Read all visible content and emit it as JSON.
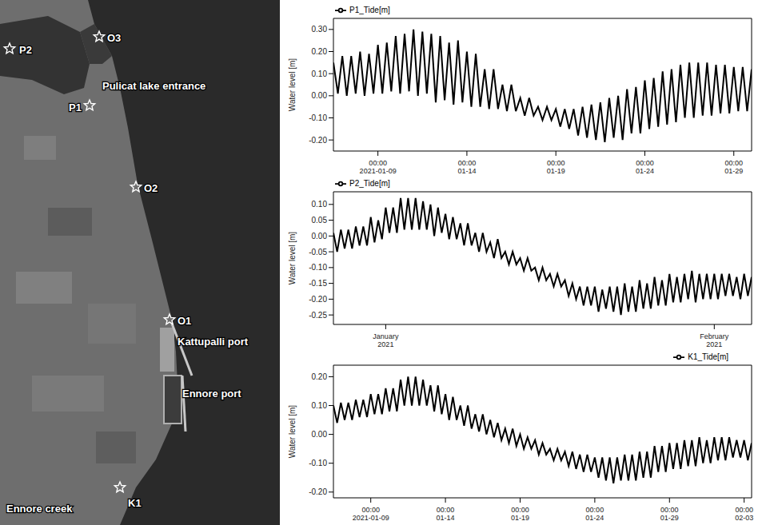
{
  "map": {
    "labels": [
      "P2",
      "O3",
      "Pulicat lake entrance",
      "P1",
      "O2",
      "O1",
      "Kattupalli port",
      "Ennore port",
      "Ennore creek",
      "K1"
    ]
  },
  "chart_data": [
    {
      "type": "line",
      "y_label": "Water level [m]",
      "legend": "top left",
      "grid": false,
      "x": [
        "2021-01-06 12:00",
        "2021-01-06 18:00",
        "2021-01-07 00:00",
        "2021-01-07 06:00",
        "2021-01-07 12:00",
        "2021-01-07 18:00",
        "2021-01-08 00:00",
        "2021-01-08 06:00",
        "2021-01-08 12:00",
        "2021-01-08 18:00",
        "2021-01-09 00:00",
        "2021-01-09 06:00",
        "2021-01-09 12:00",
        "2021-01-09 18:00",
        "2021-01-10 00:00",
        "2021-01-10 06:00",
        "2021-01-10 12:00",
        "2021-01-10 18:00",
        "2021-01-11 00:00",
        "2021-01-11 06:00",
        "2021-01-11 12:00",
        "2021-01-11 18:00",
        "2021-01-12 00:00",
        "2021-01-12 06:00",
        "2021-01-12 12:00",
        "2021-01-12 18:00",
        "2021-01-13 00:00",
        "2021-01-13 06:00",
        "2021-01-13 12:00",
        "2021-01-13 18:00",
        "2021-01-14 00:00",
        "2021-01-14 06:00",
        "2021-01-14 12:00",
        "2021-01-14 18:00",
        "2021-01-15 00:00",
        "2021-01-15 06:00",
        "2021-01-15 12:00",
        "2021-01-15 18:00",
        "2021-01-16 00:00",
        "2021-01-16 06:00",
        "2021-01-16 12:00",
        "2021-01-16 18:00",
        "2021-01-17 00:00",
        "2021-01-17 06:00",
        "2021-01-17 12:00",
        "2021-01-17 18:00",
        "2021-01-18 00:00",
        "2021-01-18 06:00",
        "2021-01-18 12:00",
        "2021-01-18 18:00",
        "2021-01-19 00:00",
        "2021-01-19 06:00",
        "2021-01-19 12:00",
        "2021-01-19 18:00",
        "2021-01-20 00:00",
        "2021-01-20 06:00",
        "2021-01-20 12:00",
        "2021-01-20 18:00",
        "2021-01-21 00:00",
        "2021-01-21 06:00",
        "2021-01-21 12:00",
        "2021-01-21 18:00",
        "2021-01-22 00:00",
        "2021-01-22 06:00",
        "2021-01-22 12:00",
        "2021-01-22 18:00",
        "2021-01-23 00:00",
        "2021-01-23 06:00",
        "2021-01-23 12:00",
        "2021-01-23 18:00",
        "2021-01-24 00:00",
        "2021-01-24 06:00",
        "2021-01-24 12:00",
        "2021-01-24 18:00",
        "2021-01-25 00:00",
        "2021-01-25 06:00",
        "2021-01-25 12:00",
        "2021-01-25 18:00",
        "2021-01-26 00:00",
        "2021-01-26 06:00",
        "2021-01-26 12:00",
        "2021-01-26 18:00",
        "2021-01-27 00:00",
        "2021-01-27 06:00",
        "2021-01-27 12:00",
        "2021-01-27 18:00",
        "2021-01-28 00:00",
        "2021-01-28 06:00",
        "2021-01-28 12:00",
        "2021-01-28 18:00",
        "2021-01-29 00:00",
        "2021-01-29 06:00",
        "2021-01-29 12:00",
        "2021-01-29 18:00",
        "2021-01-30 00:00"
      ],
      "series": [
        {
          "name": "P1_Tide[m]",
          "color": "#000000",
          "values": [
            0.15,
            0.01,
            0.18,
            0.0,
            0.18,
            0.01,
            0.2,
            0.0,
            0.19,
            0.01,
            0.23,
            0.01,
            0.24,
            0.02,
            0.27,
            0.01,
            0.28,
            0.02,
            0.3,
            0.0,
            0.29,
            0.01,
            0.28,
            -0.03,
            0.27,
            -0.02,
            0.24,
            -0.04,
            0.25,
            -0.03,
            0.2,
            -0.05,
            0.19,
            -0.05,
            0.12,
            -0.06,
            0.12,
            -0.06,
            0.05,
            -0.07,
            0.05,
            -0.07,
            -0.01,
            -0.09,
            -0.01,
            -0.09,
            -0.05,
            -0.11,
            -0.05,
            -0.11,
            -0.06,
            -0.14,
            -0.06,
            -0.15,
            -0.06,
            -0.18,
            -0.05,
            -0.19,
            -0.04,
            -0.2,
            -0.03,
            -0.21,
            -0.01,
            -0.19,
            0.0,
            -0.2,
            0.03,
            -0.17,
            0.04,
            -0.17,
            0.07,
            -0.15,
            0.08,
            -0.14,
            0.11,
            -0.13,
            0.12,
            -0.12,
            0.14,
            -0.1,
            0.15,
            -0.1,
            0.15,
            -0.09,
            0.15,
            -0.09,
            0.14,
            -0.08,
            0.14,
            -0.08,
            0.13,
            -0.07,
            0.13,
            -0.07,
            0.12
          ]
        }
      ],
      "xlim": [
        "2021-01-06 12:00",
        "2021-01-30 00:00"
      ],
      "xticks": [
        {
          "value": "2021-01-09 00:00",
          "label": "00:00\n2021-01-09"
        },
        {
          "value": "2021-01-14 00:00",
          "label": "00:00\n01-14"
        },
        {
          "value": "2021-01-19 00:00",
          "label": "00:00\n01-19"
        },
        {
          "value": "2021-01-24 00:00",
          "label": "00:00\n01-24"
        },
        {
          "value": "2021-01-29 00:00",
          "label": "00:00\n01-29"
        }
      ],
      "ylim": [
        -0.25,
        0.35
      ],
      "yticks": [
        {
          "value": -0.2,
          "label": "-0.20"
        },
        {
          "value": -0.1,
          "label": "-0.10"
        },
        {
          "value": 0,
          "label": "0.00"
        },
        {
          "value": 0.1,
          "label": "0.10"
        },
        {
          "value": 0.2,
          "label": "0.20"
        },
        {
          "value": 0.3,
          "label": "0.30"
        }
      ]
    },
    {
      "type": "line",
      "y_label": "Water level [m]",
      "legend": "top left",
      "grid": false,
      "x": [
        "2021-01-06 12:00",
        "2021-01-06 18:00",
        "2021-01-07 00:00",
        "2021-01-07 06:00",
        "2021-01-07 12:00",
        "2021-01-07 18:00",
        "2021-01-08 00:00",
        "2021-01-08 06:00",
        "2021-01-08 12:00",
        "2021-01-08 18:00",
        "2021-01-09 00:00",
        "2021-01-09 06:00",
        "2021-01-09 12:00",
        "2021-01-09 18:00",
        "2021-01-10 00:00",
        "2021-01-10 06:00",
        "2021-01-10 12:00",
        "2021-01-10 18:00",
        "2021-01-11 00:00",
        "2021-01-11 06:00",
        "2021-01-11 12:00",
        "2021-01-11 18:00",
        "2021-01-12 00:00",
        "2021-01-12 06:00",
        "2021-01-12 12:00",
        "2021-01-12 18:00",
        "2021-01-13 00:00",
        "2021-01-13 06:00",
        "2021-01-13 12:00",
        "2021-01-13 18:00",
        "2021-01-14 00:00",
        "2021-01-14 06:00",
        "2021-01-14 12:00",
        "2021-01-14 18:00",
        "2021-01-15 00:00",
        "2021-01-15 06:00",
        "2021-01-15 12:00",
        "2021-01-15 18:00",
        "2021-01-16 00:00",
        "2021-01-16 06:00",
        "2021-01-16 12:00",
        "2021-01-16 18:00",
        "2021-01-17 00:00",
        "2021-01-17 06:00",
        "2021-01-17 12:00",
        "2021-01-17 18:00",
        "2021-01-18 00:00",
        "2021-01-18 06:00",
        "2021-01-18 12:00",
        "2021-01-18 18:00",
        "2021-01-19 00:00",
        "2021-01-19 06:00",
        "2021-01-19 12:00",
        "2021-01-19 18:00",
        "2021-01-20 00:00",
        "2021-01-20 06:00",
        "2021-01-20 12:00",
        "2021-01-20 18:00",
        "2021-01-21 00:00",
        "2021-01-21 06:00",
        "2021-01-21 12:00",
        "2021-01-21 18:00",
        "2021-01-22 00:00",
        "2021-01-22 06:00",
        "2021-01-22 12:00",
        "2021-01-22 18:00",
        "2021-01-23 00:00",
        "2021-01-23 06:00",
        "2021-01-23 12:00",
        "2021-01-23 18:00",
        "2021-01-24 00:00",
        "2021-01-24 06:00",
        "2021-01-24 12:00",
        "2021-01-24 18:00",
        "2021-01-25 00:00",
        "2021-01-25 06:00",
        "2021-01-25 12:00",
        "2021-01-25 18:00",
        "2021-01-26 00:00",
        "2021-01-26 06:00",
        "2021-01-26 12:00",
        "2021-01-26 18:00",
        "2021-01-27 00:00",
        "2021-01-27 06:00",
        "2021-01-27 12:00",
        "2021-01-27 18:00",
        "2021-01-28 00:00",
        "2021-01-28 06:00",
        "2021-01-28 12:00",
        "2021-01-28 18:00",
        "2021-01-29 00:00",
        "2021-01-29 06:00",
        "2021-01-29 12:00",
        "2021-01-29 18:00",
        "2021-01-30 00:00",
        "2021-01-30 06:00",
        "2021-01-30 12:00",
        "2021-01-30 18:00",
        "2021-01-31 00:00",
        "2021-01-31 06:00",
        "2021-01-31 12:00",
        "2021-01-31 18:00",
        "2021-02-01 00:00",
        "2021-02-01 06:00",
        "2021-02-01 12:00",
        "2021-02-01 18:00",
        "2021-02-02 00:00",
        "2021-02-02 06:00",
        "2021-02-02 12:00",
        "2021-02-02 18:00",
        "2021-02-03 00:00",
        "2021-02-03 06:00",
        "2021-02-03 12:00"
      ],
      "series": [
        {
          "name": "P2_Tide[m]",
          "color": "#000000",
          "values": [
            0.01,
            -0.05,
            0.02,
            -0.04,
            0.02,
            -0.04,
            0.03,
            -0.03,
            0.03,
            -0.03,
            0.06,
            -0.02,
            0.05,
            -0.01,
            0.09,
            0.01,
            0.09,
            0.01,
            0.12,
            0.02,
            0.12,
            0.02,
            0.12,
            0.02,
            0.11,
            0.02,
            0.1,
            0.0,
            0.09,
            0.01,
            0.07,
            -0.01,
            0.06,
            -0.01,
            0.04,
            -0.03,
            0.04,
            -0.03,
            0.01,
            -0.05,
            0.01,
            -0.05,
            -0.02,
            -0.07,
            -0.01,
            -0.07,
            -0.05,
            -0.09,
            -0.05,
            -0.09,
            -0.07,
            -0.11,
            -0.07,
            -0.11,
            -0.1,
            -0.14,
            -0.1,
            -0.14,
            -0.12,
            -0.16,
            -0.12,
            -0.16,
            -0.14,
            -0.19,
            -0.15,
            -0.2,
            -0.16,
            -0.22,
            -0.16,
            -0.22,
            -0.16,
            -0.24,
            -0.17,
            -0.23,
            -0.16,
            -0.24,
            -0.16,
            -0.25,
            -0.15,
            -0.24,
            -0.16,
            -0.24,
            -0.14,
            -0.23,
            -0.15,
            -0.23,
            -0.13,
            -0.22,
            -0.14,
            -0.22,
            -0.12,
            -0.21,
            -0.13,
            -0.21,
            -0.12,
            -0.2,
            -0.11,
            -0.21,
            -0.12,
            -0.2,
            -0.12,
            -0.2,
            -0.12,
            -0.2,
            -0.12,
            -0.19,
            -0.12,
            -0.19,
            -0.13,
            -0.2,
            -0.12,
            -0.19,
            -0.13
          ]
        }
      ],
      "xlim": [
        "2021-01-06 12:00",
        "2021-02-03 12:00"
      ],
      "xticks": [
        {
          "value": "2021-01-10 00:00",
          "label": "January\n2021"
        },
        {
          "value": "2021-02-01 00:00",
          "label": "February\n2021"
        }
      ],
      "ylim": [
        -0.28,
        0.14
      ],
      "yticks": [
        -0.25,
        {
          "value": -0.2,
          "label": "-0.20"
        },
        -0.15,
        {
          "value": -0.1,
          "label": "-0.10"
        },
        -0.05,
        {
          "value": 0,
          "label": "0.00"
        },
        0.05,
        {
          "value": 0.1,
          "label": "0.10"
        }
      ]
    },
    {
      "type": "line",
      "y_label": "Water level [m]",
      "legend": "top right",
      "grid": false,
      "x": [
        "2021-01-06 12:00",
        "2021-01-06 18:00",
        "2021-01-07 00:00",
        "2021-01-07 06:00",
        "2021-01-07 12:00",
        "2021-01-07 18:00",
        "2021-01-08 00:00",
        "2021-01-08 06:00",
        "2021-01-08 12:00",
        "2021-01-08 18:00",
        "2021-01-09 00:00",
        "2021-01-09 06:00",
        "2021-01-09 12:00",
        "2021-01-09 18:00",
        "2021-01-10 00:00",
        "2021-01-10 06:00",
        "2021-01-10 12:00",
        "2021-01-10 18:00",
        "2021-01-11 00:00",
        "2021-01-11 06:00",
        "2021-01-11 12:00",
        "2021-01-11 18:00",
        "2021-01-12 00:00",
        "2021-01-12 06:00",
        "2021-01-12 12:00",
        "2021-01-12 18:00",
        "2021-01-13 00:00",
        "2021-01-13 06:00",
        "2021-01-13 12:00",
        "2021-01-13 18:00",
        "2021-01-14 00:00",
        "2021-01-14 06:00",
        "2021-01-14 12:00",
        "2021-01-14 18:00",
        "2021-01-15 00:00",
        "2021-01-15 06:00",
        "2021-01-15 12:00",
        "2021-01-15 18:00",
        "2021-01-16 00:00",
        "2021-01-16 06:00",
        "2021-01-16 12:00",
        "2021-01-16 18:00",
        "2021-01-17 00:00",
        "2021-01-17 06:00",
        "2021-01-17 12:00",
        "2021-01-17 18:00",
        "2021-01-18 00:00",
        "2021-01-18 06:00",
        "2021-01-18 12:00",
        "2021-01-18 18:00",
        "2021-01-19 00:00",
        "2021-01-19 06:00",
        "2021-01-19 12:00",
        "2021-01-19 18:00",
        "2021-01-20 00:00",
        "2021-01-20 06:00",
        "2021-01-20 12:00",
        "2021-01-20 18:00",
        "2021-01-21 00:00",
        "2021-01-21 06:00",
        "2021-01-21 12:00",
        "2021-01-21 18:00",
        "2021-01-22 00:00",
        "2021-01-22 06:00",
        "2021-01-22 12:00",
        "2021-01-22 18:00",
        "2021-01-23 00:00",
        "2021-01-23 06:00",
        "2021-01-23 12:00",
        "2021-01-23 18:00",
        "2021-01-24 00:00",
        "2021-01-24 06:00",
        "2021-01-24 12:00",
        "2021-01-24 18:00",
        "2021-01-25 00:00",
        "2021-01-25 06:00",
        "2021-01-25 12:00",
        "2021-01-25 18:00",
        "2021-01-26 00:00",
        "2021-01-26 06:00",
        "2021-01-26 12:00",
        "2021-01-26 18:00",
        "2021-01-27 00:00",
        "2021-01-27 06:00",
        "2021-01-27 12:00",
        "2021-01-27 18:00",
        "2021-01-28 00:00",
        "2021-01-28 06:00",
        "2021-01-28 12:00",
        "2021-01-28 18:00",
        "2021-01-29 00:00",
        "2021-01-29 06:00",
        "2021-01-29 12:00",
        "2021-01-29 18:00",
        "2021-01-30 00:00",
        "2021-01-30 06:00",
        "2021-01-30 12:00",
        "2021-01-30 18:00",
        "2021-01-31 00:00",
        "2021-01-31 06:00",
        "2021-01-31 12:00",
        "2021-01-31 18:00",
        "2021-02-01 00:00",
        "2021-02-01 06:00",
        "2021-02-01 12:00",
        "2021-02-01 18:00",
        "2021-02-02 00:00",
        "2021-02-02 06:00",
        "2021-02-02 12:00",
        "2021-02-02 18:00",
        "2021-02-03 00:00",
        "2021-02-03 06:00",
        "2021-02-03 12:00"
      ],
      "series": [
        {
          "name": "K1_Tide[m]",
          "color": "#000000",
          "values": [
            0.1,
            0.04,
            0.11,
            0.05,
            0.11,
            0.05,
            0.12,
            0.06,
            0.12,
            0.06,
            0.14,
            0.07,
            0.14,
            0.07,
            0.16,
            0.08,
            0.16,
            0.08,
            0.19,
            0.1,
            0.2,
            0.1,
            0.2,
            0.1,
            0.19,
            0.1,
            0.17,
            0.08,
            0.17,
            0.07,
            0.14,
            0.05,
            0.13,
            0.05,
            0.1,
            0.03,
            0.1,
            0.02,
            0.07,
            0.01,
            0.07,
            0.0,
            0.05,
            -0.01,
            0.04,
            -0.02,
            0.02,
            -0.03,
            0.02,
            -0.04,
            0.0,
            -0.05,
            -0.01,
            -0.05,
            -0.02,
            -0.07,
            -0.03,
            -0.07,
            -0.05,
            -0.09,
            -0.05,
            -0.09,
            -0.06,
            -0.11,
            -0.06,
            -0.12,
            -0.07,
            -0.13,
            -0.07,
            -0.13,
            -0.08,
            -0.15,
            -0.08,
            -0.16,
            -0.08,
            -0.17,
            -0.08,
            -0.16,
            -0.07,
            -0.16,
            -0.07,
            -0.16,
            -0.06,
            -0.15,
            -0.06,
            -0.15,
            -0.04,
            -0.13,
            -0.04,
            -0.13,
            -0.03,
            -0.12,
            -0.03,
            -0.12,
            -0.02,
            -0.11,
            -0.02,
            -0.11,
            -0.01,
            -0.1,
            -0.02,
            -0.1,
            -0.01,
            -0.09,
            -0.01,
            -0.09,
            -0.01,
            -0.08,
            -0.02,
            -0.08,
            -0.02,
            -0.09,
            -0.03
          ]
        }
      ],
      "xlim": [
        "2021-01-06 12:00",
        "2021-02-03 12:00"
      ],
      "xticks": [
        {
          "value": "2021-01-09 00:00",
          "label": "00:00\n2021-01-09"
        },
        {
          "value": "2021-01-14 00:00",
          "label": "00:00\n01-14"
        },
        {
          "value": "2021-01-19 00:00",
          "label": "00:00\n01-19"
        },
        {
          "value": "2021-01-24 00:00",
          "label": "00:00\n01-24"
        },
        {
          "value": "2021-01-29 00:00",
          "label": "00:00\n01-29"
        },
        {
          "value": "2021-02-03 00:00",
          "label": "00:00\n02-03"
        }
      ],
      "ylim": [
        -0.22,
        0.24
      ],
      "yticks": [
        {
          "value": -0.2,
          "label": "-0.20"
        },
        {
          "value": -0.1,
          "label": "-0.10"
        },
        {
          "value": 0,
          "label": "0.00"
        },
        {
          "value": 0.1,
          "label": "0.10"
        },
        {
          "value": 0.2,
          "label": "0.20"
        }
      ]
    }
  ]
}
